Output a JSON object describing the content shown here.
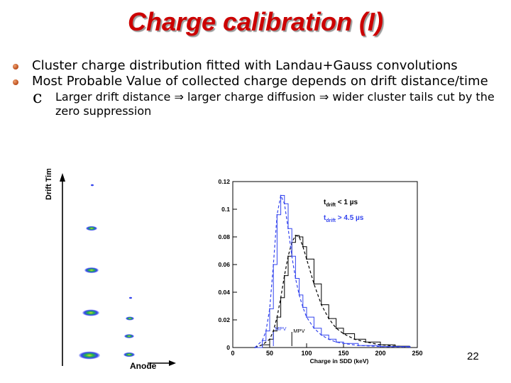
{
  "slide": {
    "title": "Charge calibration (I)",
    "bullets": [
      "Cluster charge distribution fitted with Landau+Gauss convolutions",
      "Most Probable Value of collected charge depends on drift distance/time"
    ],
    "sub_bullet": {
      "marker": "c",
      "parts": [
        "Larger drift distance ",
        "⇒",
        " larger charge diffusion ",
        "⇒",
        " wider cluster tails cut by the zero suppression"
      ]
    },
    "page_number": "22"
  },
  "left_figure": {
    "y_label": "Drift Time",
    "x_label": "Anode",
    "colors": {
      "cluster_outer": "#3344ee",
      "cluster_core": "#22bb44",
      "cluster_center": "#eecc33"
    }
  },
  "chart_data": {
    "type": "line",
    "title": "",
    "xlabel": "Charge in SDD (keV)",
    "ylabel": "",
    "xlim": [
      0,
      250
    ],
    "ylim": [
      0,
      0.12
    ],
    "x_ticks": [
      0,
      50,
      100,
      150,
      200,
      250
    ],
    "y_ticks": [
      0,
      0.02,
      0.04,
      0.06,
      0.08,
      0.1,
      0.12
    ],
    "x_tick_labels": [
      "0",
      "50",
      "100",
      "150",
      "200",
      "250"
    ],
    "y_tick_labels": [
      "0",
      "0.02",
      "0.04",
      "0.06",
      "0.08",
      "0.1",
      "0.12"
    ],
    "legend": [
      {
        "text_main": "t",
        "text_sub": "drift",
        "text_rest": " < 1 µs",
        "color": "#000000"
      },
      {
        "text_main": "t",
        "text_sub": "drift",
        "text_rest": " > 4.5 µs",
        "color": "#3344ee"
      }
    ],
    "annotations": [
      "MPV",
      "MPV"
    ],
    "series": [
      {
        "color": "#000000",
        "x": [
          30,
          40,
          50,
          55,
          60,
          65,
          70,
          75,
          80,
          85,
          90,
          95,
          100,
          110,
          120,
          130,
          140,
          150,
          165,
          180,
          200,
          220,
          240
        ],
        "y": [
          0,
          0.002,
          0.006,
          0.012,
          0.022,
          0.036,
          0.052,
          0.066,
          0.076,
          0.081,
          0.08,
          0.073,
          0.064,
          0.046,
          0.031,
          0.021,
          0.014,
          0.01,
          0.006,
          0.004,
          0.002,
          0.001,
          0.0005
        ]
      },
      {
        "color": "#3344ee",
        "x": [
          30,
          40,
          45,
          50,
          55,
          60,
          65,
          70,
          75,
          80,
          85,
          90,
          95,
          100,
          110,
          120,
          130,
          140,
          150,
          170,
          200,
          240
        ],
        "y": [
          0,
          0.005,
          0.012,
          0.028,
          0.06,
          0.096,
          0.11,
          0.104,
          0.086,
          0.066,
          0.05,
          0.038,
          0.029,
          0.022,
          0.014,
          0.009,
          0.006,
          0.004,
          0.003,
          0.0015,
          0.0007,
          0.0003
        ]
      }
    ]
  }
}
